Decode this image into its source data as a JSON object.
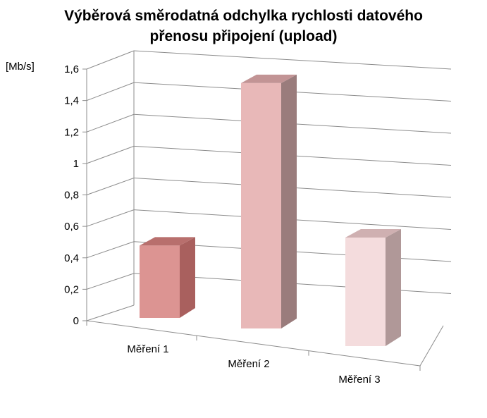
{
  "chart_data": {
    "type": "bar",
    "title_lines": [
      "Výběrová směrodatná odchylka rychlosti datového",
      "přenosu připojení (upload)"
    ],
    "xlabel": "",
    "ylabel": "[Mb/s]",
    "categories": [
      "Měření 1",
      "Měření 2",
      "Měření 3"
    ],
    "values": [
      0.46,
      1.56,
      0.69
    ],
    "ylim": [
      0,
      1.6
    ],
    "yticks": [
      "0",
      "0,2",
      "0,4",
      "0,6",
      "0,8",
      "1",
      "1,2",
      "1,4",
      "1,6"
    ],
    "grid": true,
    "legend": "none",
    "colors": [
      "#dc9492",
      "#e8b8b8",
      "#f4dcdd"
    ]
  }
}
